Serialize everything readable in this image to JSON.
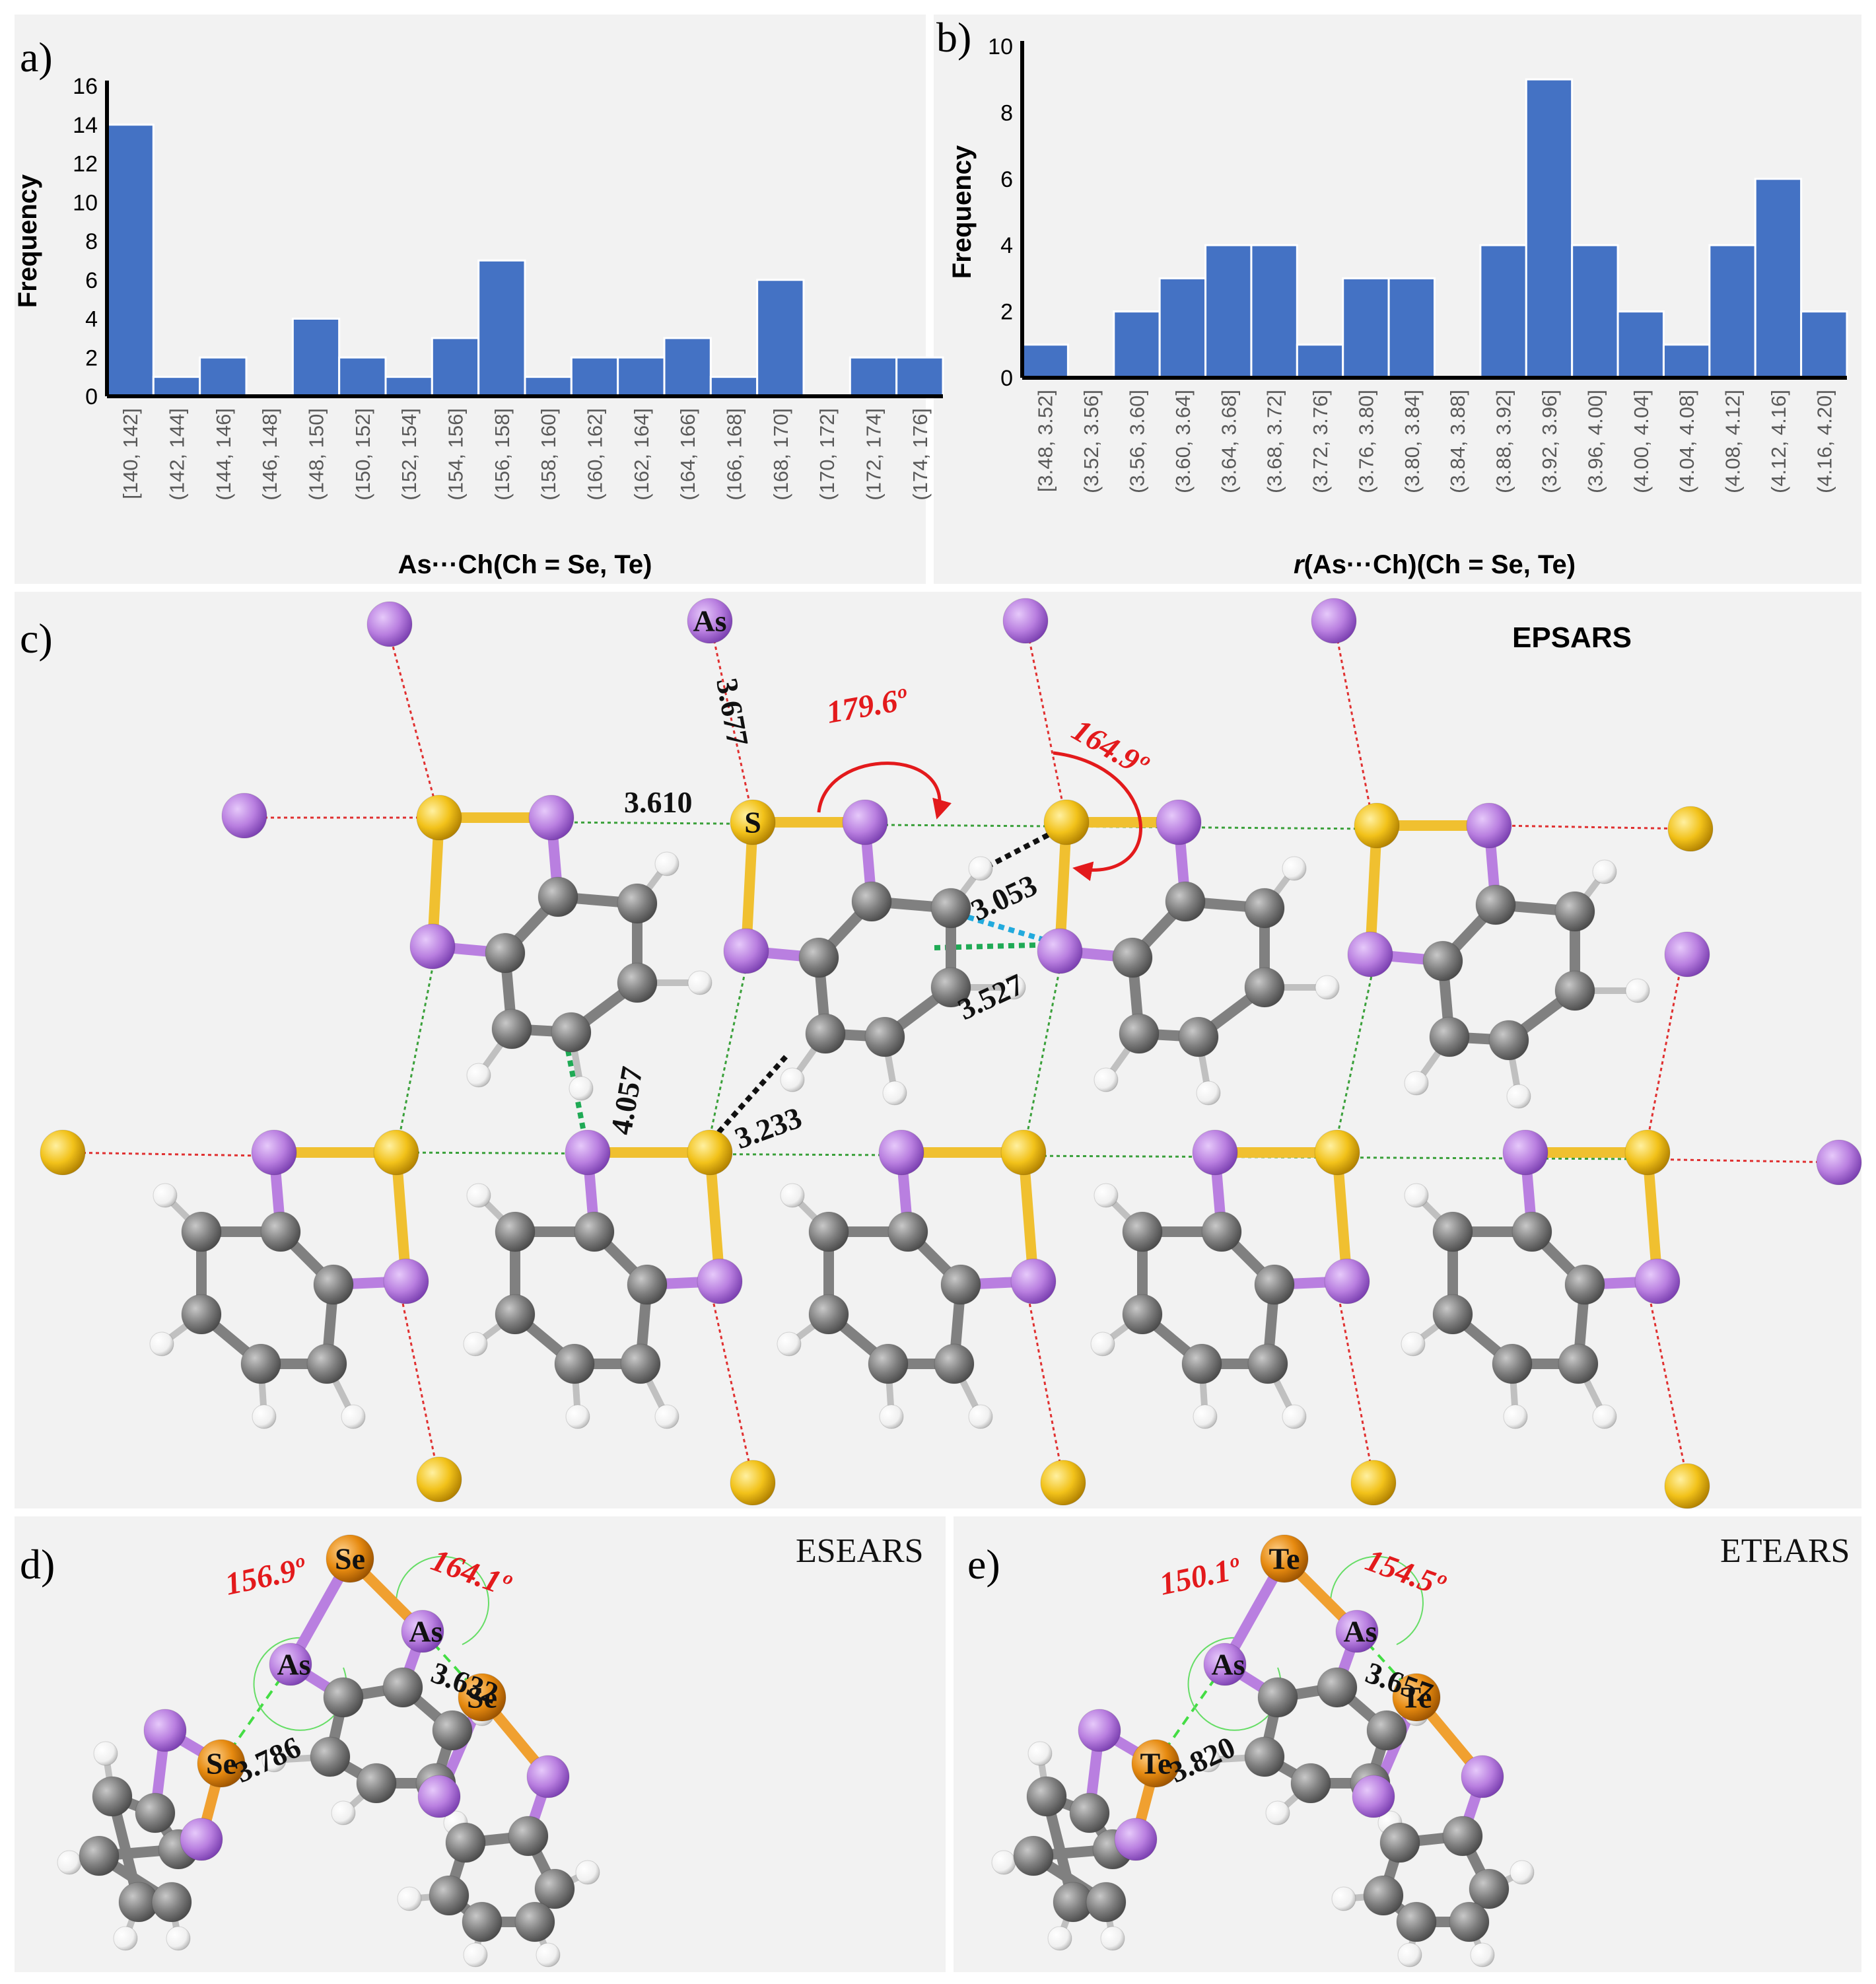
{
  "panels": {
    "a_label": "a)",
    "b_label": "b)",
    "c_label": "c)",
    "d_label": "d)",
    "e_label": "e)"
  },
  "chart_data": [
    {
      "type": "bar",
      "panel": "a",
      "xlabel": "As···Ch(Ch = Se, Te)",
      "ylabel": "Frequency",
      "ylim": [
        0,
        16
      ],
      "yticks": [
        "0",
        "2",
        "4",
        "6",
        "8",
        "10",
        "12",
        "14",
        "16"
      ],
      "categories": [
        "[140, 142]",
        "(142, 144]",
        "(144, 146]",
        "(146, 148]",
        "(148, 150]",
        "(150, 152]",
        "(152, 154]",
        "(154, 156]",
        "(156, 158]",
        "(158, 160]",
        "(160, 162]",
        "(162, 164]",
        "(164, 166]",
        "(166, 168]",
        "(168, 170]",
        "(170, 172]",
        "(172, 174]",
        "(174, 176]"
      ],
      "values": [
        14,
        1,
        2,
        0,
        4,
        2,
        1,
        3,
        7,
        1,
        2,
        2,
        3,
        1,
        6,
        0,
        2,
        2
      ]
    },
    {
      "type": "bar",
      "panel": "b",
      "xlabel_prefix": "r",
      "xlabel": "(As···Ch)(Ch = Se, Te)",
      "ylabel": "Frequency",
      "ylim": [
        0,
        10
      ],
      "yticks": [
        "0",
        "2",
        "4",
        "6",
        "8",
        "10"
      ],
      "categories": [
        "[3.48, 3.52]",
        "(3.52, 3.56]",
        "(3.56, 3.60]",
        "(3.60, 3.64]",
        "(3.64, 3.68]",
        "(3.68, 3.72]",
        "(3.72, 3.76]",
        "(3.76, 3.80]",
        "(3.80, 3.84]",
        "(3.84, 3.88]",
        "(3.88, 3.92]",
        "(3.92, 3.96]",
        "(3.96, 4.00]",
        "(4.00, 4.04]",
        "(4.04, 4.08]",
        "(4.08, 4.12]",
        "(4.12, 4.16]",
        "(4.16, 4.20]"
      ],
      "values": [
        1,
        0,
        2,
        3,
        4,
        4,
        1,
        3,
        3,
        0,
        4,
        9,
        4,
        2,
        1,
        4,
        6,
        2
      ]
    }
  ],
  "panel_c": {
    "title": "EPSARS",
    "dist_as_s": "3.677",
    "dist_s_as": "3.610",
    "dist_h_s": "3.053",
    "dist_c_as": "3.527",
    "dist_h_as": "4.057",
    "dist_h_s2": "3.233",
    "angle1": "179.6º",
    "angle2": "164.9º",
    "atom_as": "As",
    "atom_s": "S"
  },
  "panel_d": {
    "title": "ESEARS",
    "angle1": "156.9º",
    "angle2": "164.1º",
    "dist1": "3.786",
    "dist2": "3.632",
    "atom_se": "Se",
    "atom_as": "As"
  },
  "panel_e": {
    "title": "ETEARS",
    "angle1": "150.1º",
    "angle2": "154.5º",
    "dist1": "3.820",
    "dist2": "3.657",
    "atom_te": "Te",
    "atom_as": "As"
  },
  "colors": {
    "bar": "#4472c4",
    "arsenic": "#b97fe0",
    "sulfur": "#f0c030",
    "selenium": "#e69020",
    "carbon": "#7f7f7f",
    "hydrogen": "#f2f2f2",
    "angle_text": "#e31a1c"
  }
}
